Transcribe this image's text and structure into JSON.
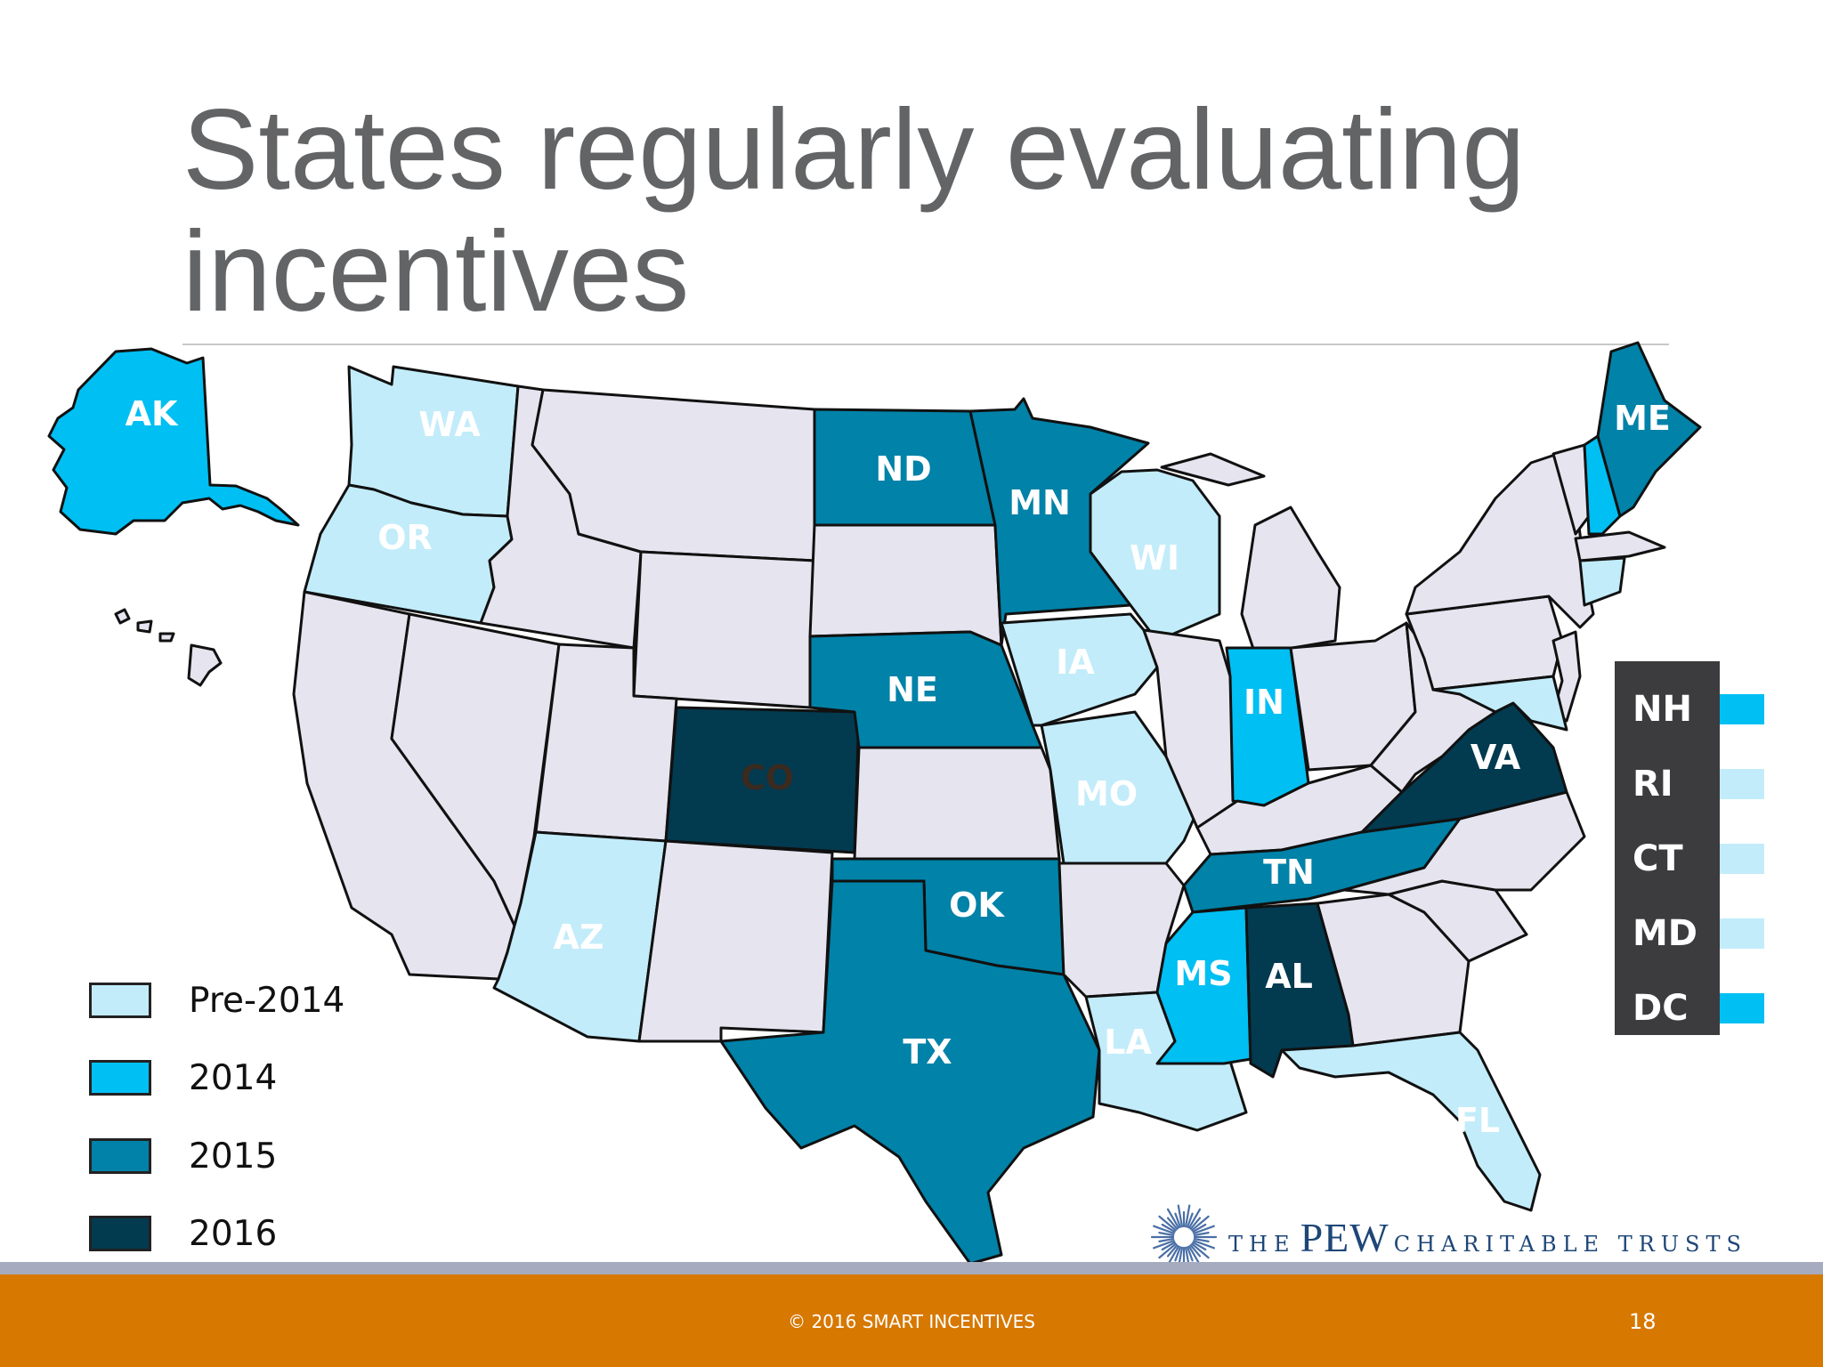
{
  "slide": {
    "title": "States regularly evaluating incentives",
    "page_number": "18",
    "copyright": "© 2016 SMART INCENTIVES"
  },
  "colors": {
    "pre_2014": "#c2ecfa",
    "y2014": "#00bff3",
    "y2015": "#0182a8",
    "y2016": "#023a50",
    "no_evaluation": "#e5e4ef",
    "footer": "#d77800"
  },
  "legend": [
    {
      "label": "Pre-2014",
      "category": "pre_2014"
    },
    {
      "label": "2014",
      "category": "y2014"
    },
    {
      "label": "2015",
      "category": "y2015"
    },
    {
      "label": "2016",
      "category": "y2016"
    }
  ],
  "map": {
    "labeled_states": [
      {
        "abbr": "AK",
        "category": "y2014"
      },
      {
        "abbr": "WA",
        "category": "pre_2014"
      },
      {
        "abbr": "OR",
        "category": "pre_2014"
      },
      {
        "abbr": "ND",
        "category": "y2015"
      },
      {
        "abbr": "MN",
        "category": "y2015"
      },
      {
        "abbr": "ME",
        "category": "y2015"
      },
      {
        "abbr": "WI",
        "category": "pre_2014"
      },
      {
        "abbr": "IA",
        "category": "pre_2014"
      },
      {
        "abbr": "NE",
        "category": "y2015"
      },
      {
        "abbr": "IN",
        "category": "y2014"
      },
      {
        "abbr": "CO",
        "category": "y2016"
      },
      {
        "abbr": "VA",
        "category": "y2016"
      },
      {
        "abbr": "MO",
        "category": "pre_2014"
      },
      {
        "abbr": "TN",
        "category": "y2015"
      },
      {
        "abbr": "OK",
        "category": "y2015"
      },
      {
        "abbr": "AZ",
        "category": "pre_2014"
      },
      {
        "abbr": "MS",
        "category": "y2014"
      },
      {
        "abbr": "AL",
        "category": "y2016"
      },
      {
        "abbr": "TX",
        "category": "y2015"
      },
      {
        "abbr": "LA",
        "category": "pre_2014"
      },
      {
        "abbr": "FL",
        "category": "pre_2014"
      }
    ],
    "inset_states": [
      {
        "abbr": "NH",
        "category": "y2014"
      },
      {
        "abbr": "RI",
        "category": "pre_2014"
      },
      {
        "abbr": "CT",
        "category": "pre_2014"
      },
      {
        "abbr": "MD",
        "category": "pre_2014"
      },
      {
        "abbr": "DC",
        "category": "y2014"
      }
    ]
  },
  "logo": {
    "the": "THE",
    "name": "PEW",
    "rest": "CHARITABLE TRUSTS"
  }
}
